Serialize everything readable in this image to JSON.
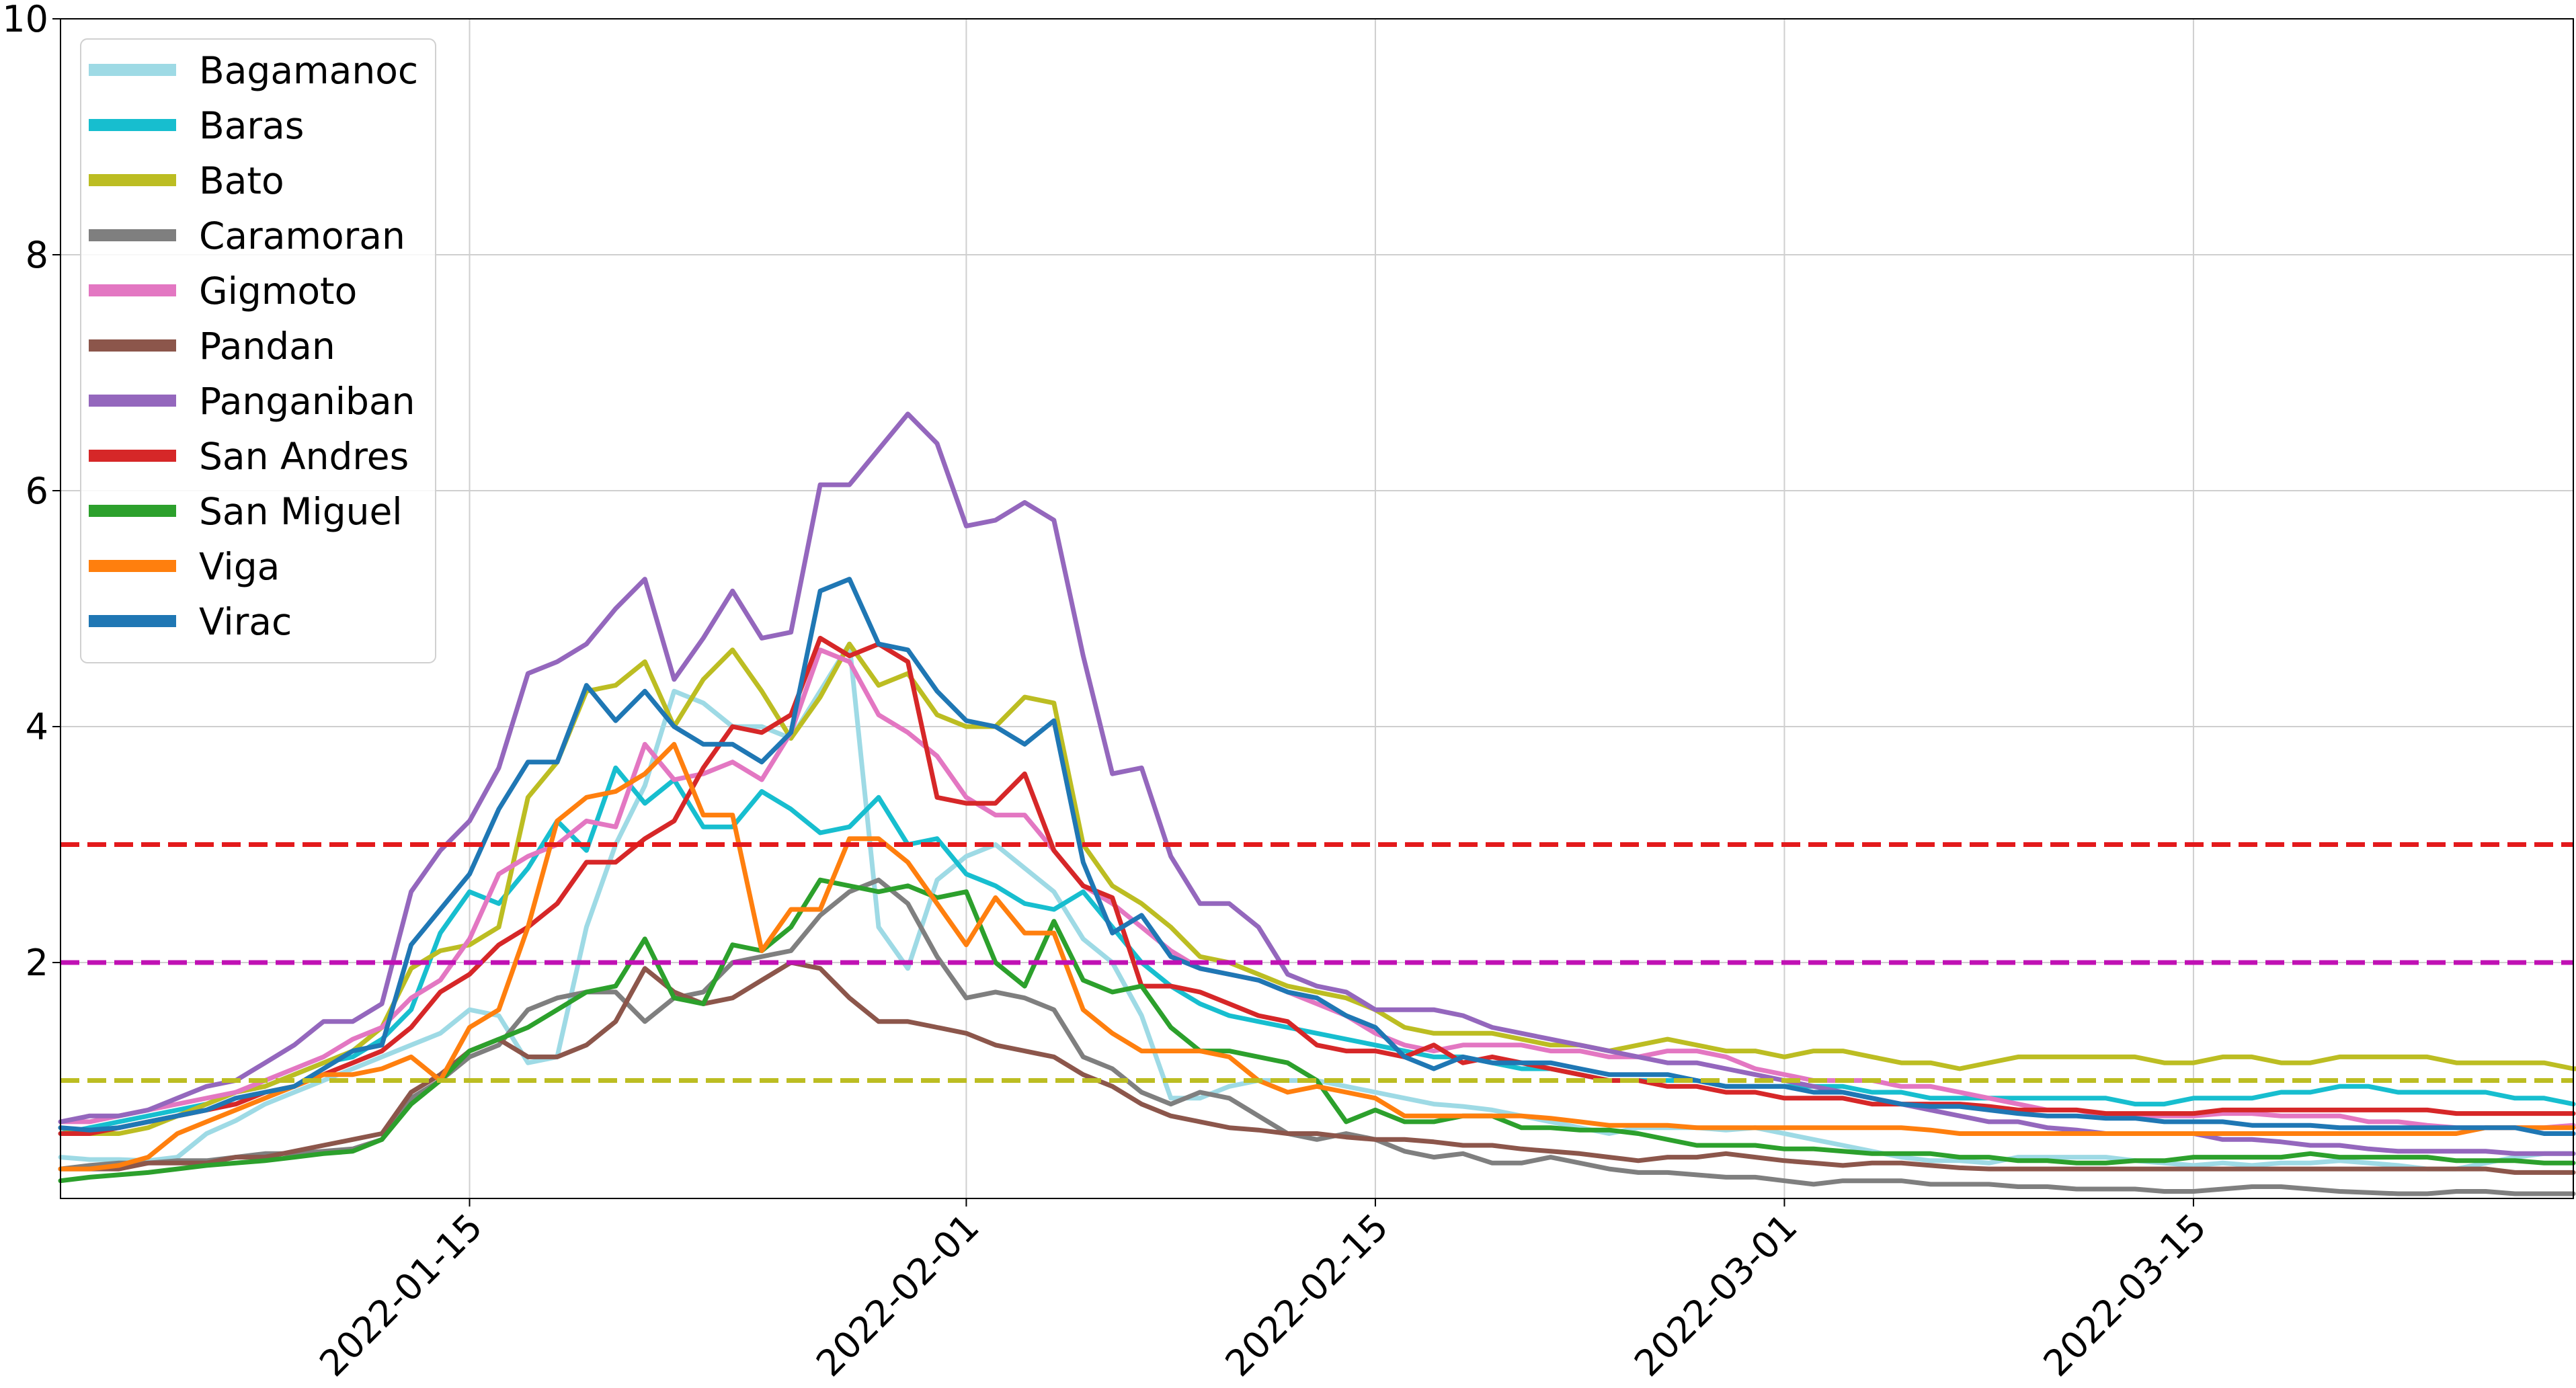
{
  "chart_data": {
    "type": "line",
    "title": "",
    "xlabel": "",
    "ylabel": "",
    "x_start": "2022-01-01",
    "x_end": "2022-03-28",
    "xlim": [
      "2022-01-01",
      "2022-03-28"
    ],
    "ylim": [
      0,
      10
    ],
    "y_ticks": [
      "2",
      "4",
      "6",
      "8",
      "10"
    ],
    "x_ticks": [
      "2022-01-15",
      "2022-02-01",
      "2022-02-15",
      "2022-03-01",
      "2022-03-15"
    ],
    "grid": true,
    "legend_position": "top-left",
    "reference_lines": [
      {
        "value": 3,
        "color": "#e31a1c"
      },
      {
        "value": 2,
        "color": "#c011b4"
      },
      {
        "value": 1,
        "color": "#bcbd22"
      }
    ],
    "series": [
      {
        "name": "Bagamanoc",
        "color": "#9edae5",
        "values": [
          0.35,
          0.33,
          0.33,
          0.32,
          0.35,
          0.55,
          0.66,
          0.8,
          0.9,
          1.0,
          1.1,
          1.2,
          1.3,
          1.4,
          1.6,
          1.55,
          1.15,
          1.2,
          2.3,
          3.0,
          3.5,
          4.3,
          4.2,
          4.0,
          4.0,
          3.9,
          4.3,
          4.7,
          2.3,
          1.95,
          2.7,
          2.9,
          3.0,
          2.8,
          2.6,
          2.2,
          2.0,
          1.55,
          0.85,
          0.85,
          0.95,
          1.0,
          1.0,
          1.0,
          0.95,
          0.9,
          0.85,
          0.8,
          0.78,
          0.75,
          0.7,
          0.65,
          0.6,
          0.55,
          0.6,
          0.6,
          0.6,
          0.58,
          0.6,
          0.55,
          0.5,
          0.45,
          0.4,
          0.35,
          0.32,
          0.32,
          0.3,
          0.35,
          0.35,
          0.35,
          0.35,
          0.32,
          0.3,
          0.28,
          0.3,
          0.28,
          0.3,
          0.3,
          0.32,
          0.3,
          0.28,
          0.25,
          0.25,
          0.3,
          0.35,
          0.38,
          0.38
        ]
      },
      {
        "name": "Baras",
        "color": "#17becf",
        "values": [
          0.55,
          0.6,
          0.65,
          0.7,
          0.75,
          0.8,
          0.9,
          0.95,
          1.05,
          1.15,
          1.2,
          1.35,
          1.6,
          2.25,
          2.6,
          2.5,
          2.8,
          3.2,
          2.95,
          3.65,
          3.35,
          3.55,
          3.15,
          3.15,
          3.45,
          3.3,
          3.1,
          3.15,
          3.4,
          3.0,
          3.05,
          2.75,
          2.65,
          2.5,
          2.45,
          2.6,
          2.3,
          2.0,
          1.8,
          1.65,
          1.55,
          1.5,
          1.45,
          1.4,
          1.35,
          1.3,
          1.25,
          1.2,
          1.2,
          1.15,
          1.1,
          1.1,
          1.05,
          1.0,
          1.0,
          1.0,
          1.0,
          0.95,
          0.95,
          0.95,
          0.95,
          0.95,
          0.9,
          0.9,
          0.85,
          0.85,
          0.85,
          0.85,
          0.85,
          0.85,
          0.85,
          0.8,
          0.8,
          0.85,
          0.85,
          0.85,
          0.9,
          0.9,
          0.95,
          0.95,
          0.9,
          0.9,
          0.9,
          0.9,
          0.85,
          0.85,
          0.8
        ]
      },
      {
        "name": "Bato",
        "color": "#bcbd22",
        "values": [
          0.6,
          0.55,
          0.55,
          0.6,
          0.7,
          0.8,
          0.9,
          0.95,
          1.05,
          1.15,
          1.25,
          1.45,
          1.95,
          2.1,
          2.15,
          2.3,
          3.4,
          3.7,
          4.3,
          4.35,
          4.55,
          4.0,
          4.4,
          4.65,
          4.3,
          3.9,
          4.25,
          4.7,
          4.35,
          4.45,
          4.1,
          4.0,
          4.0,
          4.25,
          4.2,
          3.0,
          2.65,
          2.5,
          2.3,
          2.05,
          2.0,
          1.9,
          1.8,
          1.75,
          1.7,
          1.6,
          1.45,
          1.4,
          1.4,
          1.4,
          1.35,
          1.3,
          1.3,
          1.25,
          1.3,
          1.35,
          1.3,
          1.25,
          1.25,
          1.2,
          1.25,
          1.25,
          1.2,
          1.15,
          1.15,
          1.1,
          1.15,
          1.2,
          1.2,
          1.2,
          1.2,
          1.2,
          1.15,
          1.15,
          1.2,
          1.2,
          1.15,
          1.15,
          1.2,
          1.2,
          1.2,
          1.2,
          1.15,
          1.15,
          1.15,
          1.15,
          1.1,
          1.1,
          1.15
        ]
      },
      {
        "name": "Caramoran",
        "color": "#7f7f7f",
        "values": [
          0.25,
          0.28,
          0.3,
          0.3,
          0.32,
          0.32,
          0.35,
          0.38,
          0.38,
          0.4,
          0.42,
          0.5,
          0.85,
          1.0,
          1.2,
          1.3,
          1.6,
          1.7,
          1.75,
          1.75,
          1.5,
          1.7,
          1.75,
          2.0,
          2.05,
          2.1,
          2.4,
          2.6,
          2.7,
          2.5,
          2.05,
          1.7,
          1.75,
          1.7,
          1.6,
          1.2,
          1.1,
          0.9,
          0.8,
          0.9,
          0.85,
          0.7,
          0.55,
          0.5,
          0.55,
          0.5,
          0.4,
          0.35,
          0.38,
          0.3,
          0.3,
          0.35,
          0.3,
          0.25,
          0.22,
          0.22,
          0.2,
          0.18,
          0.18,
          0.15,
          0.12,
          0.15,
          0.15,
          0.15,
          0.12,
          0.12,
          0.12,
          0.1,
          0.1,
          0.08,
          0.08,
          0.08,
          0.06,
          0.06,
          0.08,
          0.1,
          0.1,
          0.08,
          0.06,
          0.05,
          0.04,
          0.04,
          0.06,
          0.06,
          0.04,
          0.04,
          0.04
        ]
      },
      {
        "name": "Gigmoto",
        "color": "#e377c2",
        "values": [
          0.65,
          0.65,
          0.7,
          0.75,
          0.8,
          0.85,
          0.9,
          1.0,
          1.1,
          1.2,
          1.35,
          1.45,
          1.7,
          1.85,
          2.2,
          2.75,
          2.9,
          3.0,
          3.2,
          3.15,
          3.85,
          3.55,
          3.6,
          3.7,
          3.55,
          3.95,
          4.65,
          4.55,
          4.1,
          3.95,
          3.75,
          3.4,
          3.25,
          3.25,
          2.95,
          2.65,
          2.5,
          2.3,
          2.1,
          1.95,
          1.9,
          1.85,
          1.75,
          1.65,
          1.55,
          1.4,
          1.3,
          1.25,
          1.3,
          1.3,
          1.3,
          1.25,
          1.25,
          1.2,
          1.2,
          1.25,
          1.25,
          1.2,
          1.1,
          1.05,
          1.0,
          1.0,
          1.0,
          0.95,
          0.95,
          0.9,
          0.85,
          0.8,
          0.75,
          0.75,
          0.7,
          0.7,
          0.7,
          0.7,
          0.72,
          0.72,
          0.7,
          0.7,
          0.7,
          0.65,
          0.65,
          0.62,
          0.6,
          0.6,
          0.6,
          0.6,
          0.62
        ]
      },
      {
        "name": "Pandan",
        "color": "#8c564b",
        "values": [
          0.25,
          0.25,
          0.25,
          0.3,
          0.3,
          0.3,
          0.35,
          0.35,
          0.4,
          0.45,
          0.5,
          0.55,
          0.9,
          1.05,
          1.25,
          1.35,
          1.2,
          1.2,
          1.3,
          1.5,
          1.95,
          1.75,
          1.65,
          1.7,
          1.85,
          2.0,
          1.95,
          1.7,
          1.5,
          1.5,
          1.45,
          1.4,
          1.3,
          1.25,
          1.2,
          1.05,
          0.95,
          0.8,
          0.7,
          0.65,
          0.6,
          0.58,
          0.55,
          0.55,
          0.52,
          0.5,
          0.5,
          0.48,
          0.45,
          0.45,
          0.42,
          0.4,
          0.38,
          0.35,
          0.32,
          0.35,
          0.35,
          0.38,
          0.35,
          0.32,
          0.3,
          0.28,
          0.3,
          0.3,
          0.28,
          0.26,
          0.25,
          0.25,
          0.25,
          0.25,
          0.25,
          0.25,
          0.25,
          0.25,
          0.25,
          0.25,
          0.25,
          0.25,
          0.25,
          0.25,
          0.25,
          0.25,
          0.25,
          0.25,
          0.22,
          0.22,
          0.22
        ]
      },
      {
        "name": "Panganiban",
        "color": "#9467bd",
        "values": [
          0.65,
          0.7,
          0.7,
          0.75,
          0.85,
          0.95,
          1.0,
          1.15,
          1.3,
          1.5,
          1.5,
          1.65,
          2.6,
          2.95,
          3.2,
          3.65,
          4.45,
          4.55,
          4.7,
          5.0,
          5.25,
          4.4,
          4.75,
          5.15,
          4.75,
          4.8,
          6.05,
          6.05,
          6.35,
          6.65,
          6.4,
          5.7,
          5.75,
          5.9,
          5.75,
          4.6,
          3.6,
          3.65,
          2.9,
          2.5,
          2.5,
          2.3,
          1.9,
          1.8,
          1.75,
          1.6,
          1.6,
          1.6,
          1.55,
          1.45,
          1.4,
          1.35,
          1.3,
          1.25,
          1.2,
          1.15,
          1.15,
          1.1,
          1.05,
          1.0,
          0.95,
          0.9,
          0.85,
          0.8,
          0.75,
          0.7,
          0.65,
          0.65,
          0.6,
          0.58,
          0.55,
          0.55,
          0.55,
          0.55,
          0.5,
          0.5,
          0.48,
          0.45,
          0.45,
          0.42,
          0.4,
          0.4,
          0.4,
          0.4,
          0.38,
          0.38,
          0.38
        ]
      },
      {
        "name": "San Andres",
        "color": "#d62728",
        "values": [
          0.55,
          0.55,
          0.6,
          0.65,
          0.7,
          0.75,
          0.8,
          0.9,
          0.95,
          1.05,
          1.15,
          1.25,
          1.45,
          1.75,
          1.9,
          2.15,
          2.3,
          2.5,
          2.85,
          2.85,
          3.05,
          3.2,
          3.65,
          4.0,
          3.95,
          4.1,
          4.75,
          4.6,
          4.7,
          4.55,
          3.4,
          3.35,
          3.35,
          3.6,
          2.95,
          2.65,
          2.55,
          1.8,
          1.8,
          1.75,
          1.65,
          1.55,
          1.5,
          1.3,
          1.25,
          1.25,
          1.2,
          1.3,
          1.15,
          1.2,
          1.15,
          1.1,
          1.05,
          1.0,
          1.0,
          0.95,
          0.95,
          0.9,
          0.9,
          0.85,
          0.85,
          0.85,
          0.8,
          0.8,
          0.8,
          0.8,
          0.78,
          0.75,
          0.75,
          0.75,
          0.72,
          0.72,
          0.72,
          0.72,
          0.75,
          0.75,
          0.75,
          0.75,
          0.75,
          0.75,
          0.75,
          0.75,
          0.72,
          0.72,
          0.72,
          0.72,
          0.72
        ]
      },
      {
        "name": "San Miguel",
        "color": "#2ca02c",
        "values": [
          0.15,
          0.18,
          0.2,
          0.22,
          0.25,
          0.28,
          0.3,
          0.32,
          0.35,
          0.38,
          0.4,
          0.5,
          0.8,
          1.0,
          1.25,
          1.35,
          1.45,
          1.6,
          1.75,
          1.8,
          2.2,
          1.7,
          1.65,
          2.15,
          2.1,
          2.3,
          2.7,
          2.65,
          2.6,
          2.65,
          2.55,
          2.6,
          2.0,
          1.8,
          2.35,
          1.85,
          1.75,
          1.8,
          1.45,
          1.25,
          1.25,
          1.2,
          1.15,
          1.0,
          0.65,
          0.75,
          0.65,
          0.65,
          0.7,
          0.7,
          0.6,
          0.6,
          0.58,
          0.58,
          0.55,
          0.5,
          0.45,
          0.45,
          0.45,
          0.42,
          0.42,
          0.4,
          0.38,
          0.38,
          0.38,
          0.35,
          0.35,
          0.32,
          0.32,
          0.3,
          0.3,
          0.32,
          0.32,
          0.35,
          0.35,
          0.35,
          0.35,
          0.38,
          0.35,
          0.35,
          0.35,
          0.35,
          0.32,
          0.32,
          0.32,
          0.3,
          0.3
        ]
      },
      {
        "name": "Viga",
        "color": "#ff7f0e",
        "values": [
          0.25,
          0.25,
          0.28,
          0.35,
          0.55,
          0.65,
          0.75,
          0.85,
          0.95,
          1.05,
          1.05,
          1.1,
          1.2,
          1.0,
          1.45,
          1.6,
          2.3,
          3.2,
          3.4,
          3.45,
          3.6,
          3.85,
          3.25,
          3.25,
          2.1,
          2.45,
          2.45,
          3.05,
          3.05,
          2.85,
          2.5,
          2.15,
          2.55,
          2.25,
          2.25,
          1.6,
          1.4,
          1.25,
          1.25,
          1.25,
          1.2,
          1.0,
          0.9,
          0.95,
          0.9,
          0.85,
          0.7,
          0.7,
          0.7,
          0.7,
          0.7,
          0.68,
          0.65,
          0.62,
          0.62,
          0.62,
          0.6,
          0.6,
          0.6,
          0.6,
          0.6,
          0.6,
          0.6,
          0.6,
          0.58,
          0.55,
          0.55,
          0.55,
          0.55,
          0.55,
          0.55,
          0.55,
          0.55,
          0.55,
          0.55,
          0.55,
          0.55,
          0.55,
          0.55,
          0.55,
          0.55,
          0.55,
          0.55,
          0.6,
          0.6,
          0.6,
          0.6
        ]
      },
      {
        "name": "Virac",
        "color": "#1f77b4",
        "values": [
          0.6,
          0.58,
          0.6,
          0.65,
          0.7,
          0.75,
          0.85,
          0.9,
          0.95,
          1.1,
          1.25,
          1.3,
          2.15,
          2.45,
          2.75,
          3.3,
          3.7,
          3.7,
          4.35,
          4.05,
          4.3,
          4.0,
          3.85,
          3.85,
          3.7,
          3.95,
          5.15,
          5.25,
          4.7,
          4.65,
          4.3,
          4.05,
          4.0,
          3.85,
          4.05,
          2.85,
          2.25,
          2.4,
          2.05,
          1.95,
          1.9,
          1.85,
          1.75,
          1.7,
          1.55,
          1.45,
          1.2,
          1.1,
          1.2,
          1.15,
          1.15,
          1.15,
          1.1,
          1.05,
          1.05,
          1.05,
          1.0,
          0.95,
          0.95,
          0.95,
          0.9,
          0.9,
          0.85,
          0.8,
          0.78,
          0.78,
          0.75,
          0.72,
          0.7,
          0.7,
          0.68,
          0.68,
          0.65,
          0.65,
          0.65,
          0.62,
          0.62,
          0.62,
          0.6,
          0.6,
          0.6,
          0.6,
          0.6,
          0.6,
          0.6,
          0.55,
          0.55
        ]
      }
    ]
  }
}
